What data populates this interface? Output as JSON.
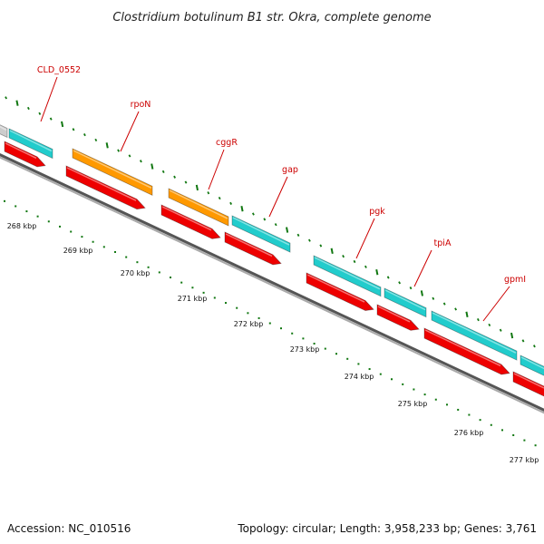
{
  "header": {
    "title": "Clostridium botulinum B1 str. Okra, complete genome"
  },
  "colors": {
    "cds": "#ee0000",
    "gene_teal": "#22cccc",
    "gene_orange": "#ff9900",
    "backbone": "#777777",
    "ticks": "#117711",
    "label": "#cc0000",
    "other": "#cccccc"
  },
  "map": {
    "scale_unit": "kbp",
    "scale_labels": [
      "268 kbp",
      "269 kbp",
      "270 kbp",
      "271 kbp",
      "272 kbp",
      "273 kbp",
      "274 kbp",
      "275 kbp",
      "276 kbp",
      "277 kbp"
    ],
    "genes": [
      {
        "name": "CLD_0552",
        "color": "teal"
      },
      {
        "name": "rpoN",
        "color": "orange"
      },
      {
        "name": "cggR",
        "color": "orange"
      },
      {
        "name": "gap",
        "color": "teal"
      },
      {
        "name": "pgk",
        "color": "teal"
      },
      {
        "name": "tpiA",
        "color": "teal"
      },
      {
        "name": "gpmI",
        "color": "teal"
      }
    ]
  },
  "footer": {
    "accession": "Accession: NC_010516",
    "summary": "Topology: circular; Length: 3,958,233 bp; Genes: 3,761"
  }
}
